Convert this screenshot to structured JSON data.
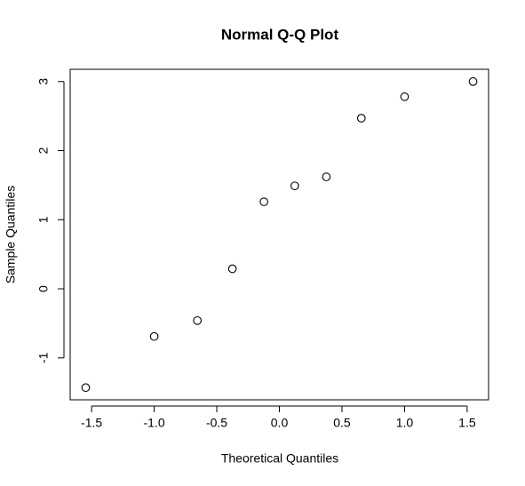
{
  "chart_data": {
    "type": "scatter",
    "title": "Normal Q-Q Plot",
    "x_label": "Theoretical Quantiles",
    "y_label": "Sample Quantiles",
    "x": [
      -1.547,
      -1.0,
      -0.655,
      -0.375,
      -0.123,
      0.123,
      0.375,
      0.655,
      1.0,
      1.547
    ],
    "values": [
      -1.43,
      -0.69,
      -0.46,
      0.29,
      1.26,
      1.49,
      1.62,
      2.47,
      2.78,
      3.0
    ],
    "color": "#000000",
    "xlim": [
      -1.671,
      1.671
    ],
    "xticks": [
      -1.5,
      {
        "value": -1,
        "label": "-1.0"
      },
      -0.5,
      {
        "value": 0,
        "label": "0.0"
      },
      0.5,
      {
        "value": 1,
        "label": "1.0"
      },
      1.5
    ],
    "ylim": [
      -1.607,
      3.177
    ],
    "yticks": [
      -1,
      0,
      1,
      2,
      3
    ]
  }
}
